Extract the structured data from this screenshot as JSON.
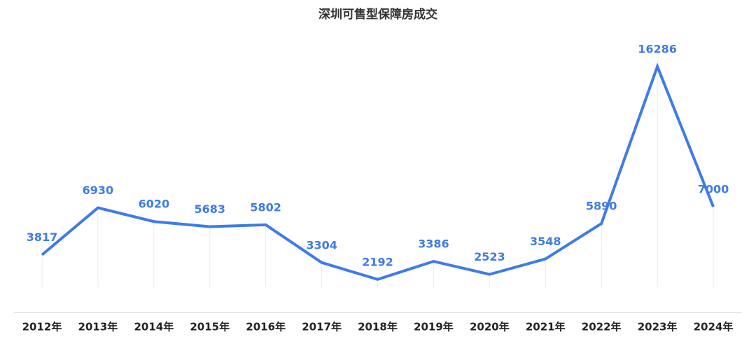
{
  "chart_data": {
    "type": "line",
    "title": "深圳可售型保障房成交",
    "categories": [
      "2012年",
      "2013年",
      "2014年",
      "2015年",
      "2016年",
      "2017年",
      "2018年",
      "2019年",
      "2020年",
      "2021年",
      "2022年",
      "2023年",
      "2024年"
    ],
    "values": [
      3817,
      6930,
      6020,
      5683,
      5802,
      3304,
      2192,
      3386,
      2523,
      3548,
      5890,
      16286,
      7000
    ],
    "color": "#3f7be8",
    "ylim": [
      0,
      18000
    ]
  }
}
